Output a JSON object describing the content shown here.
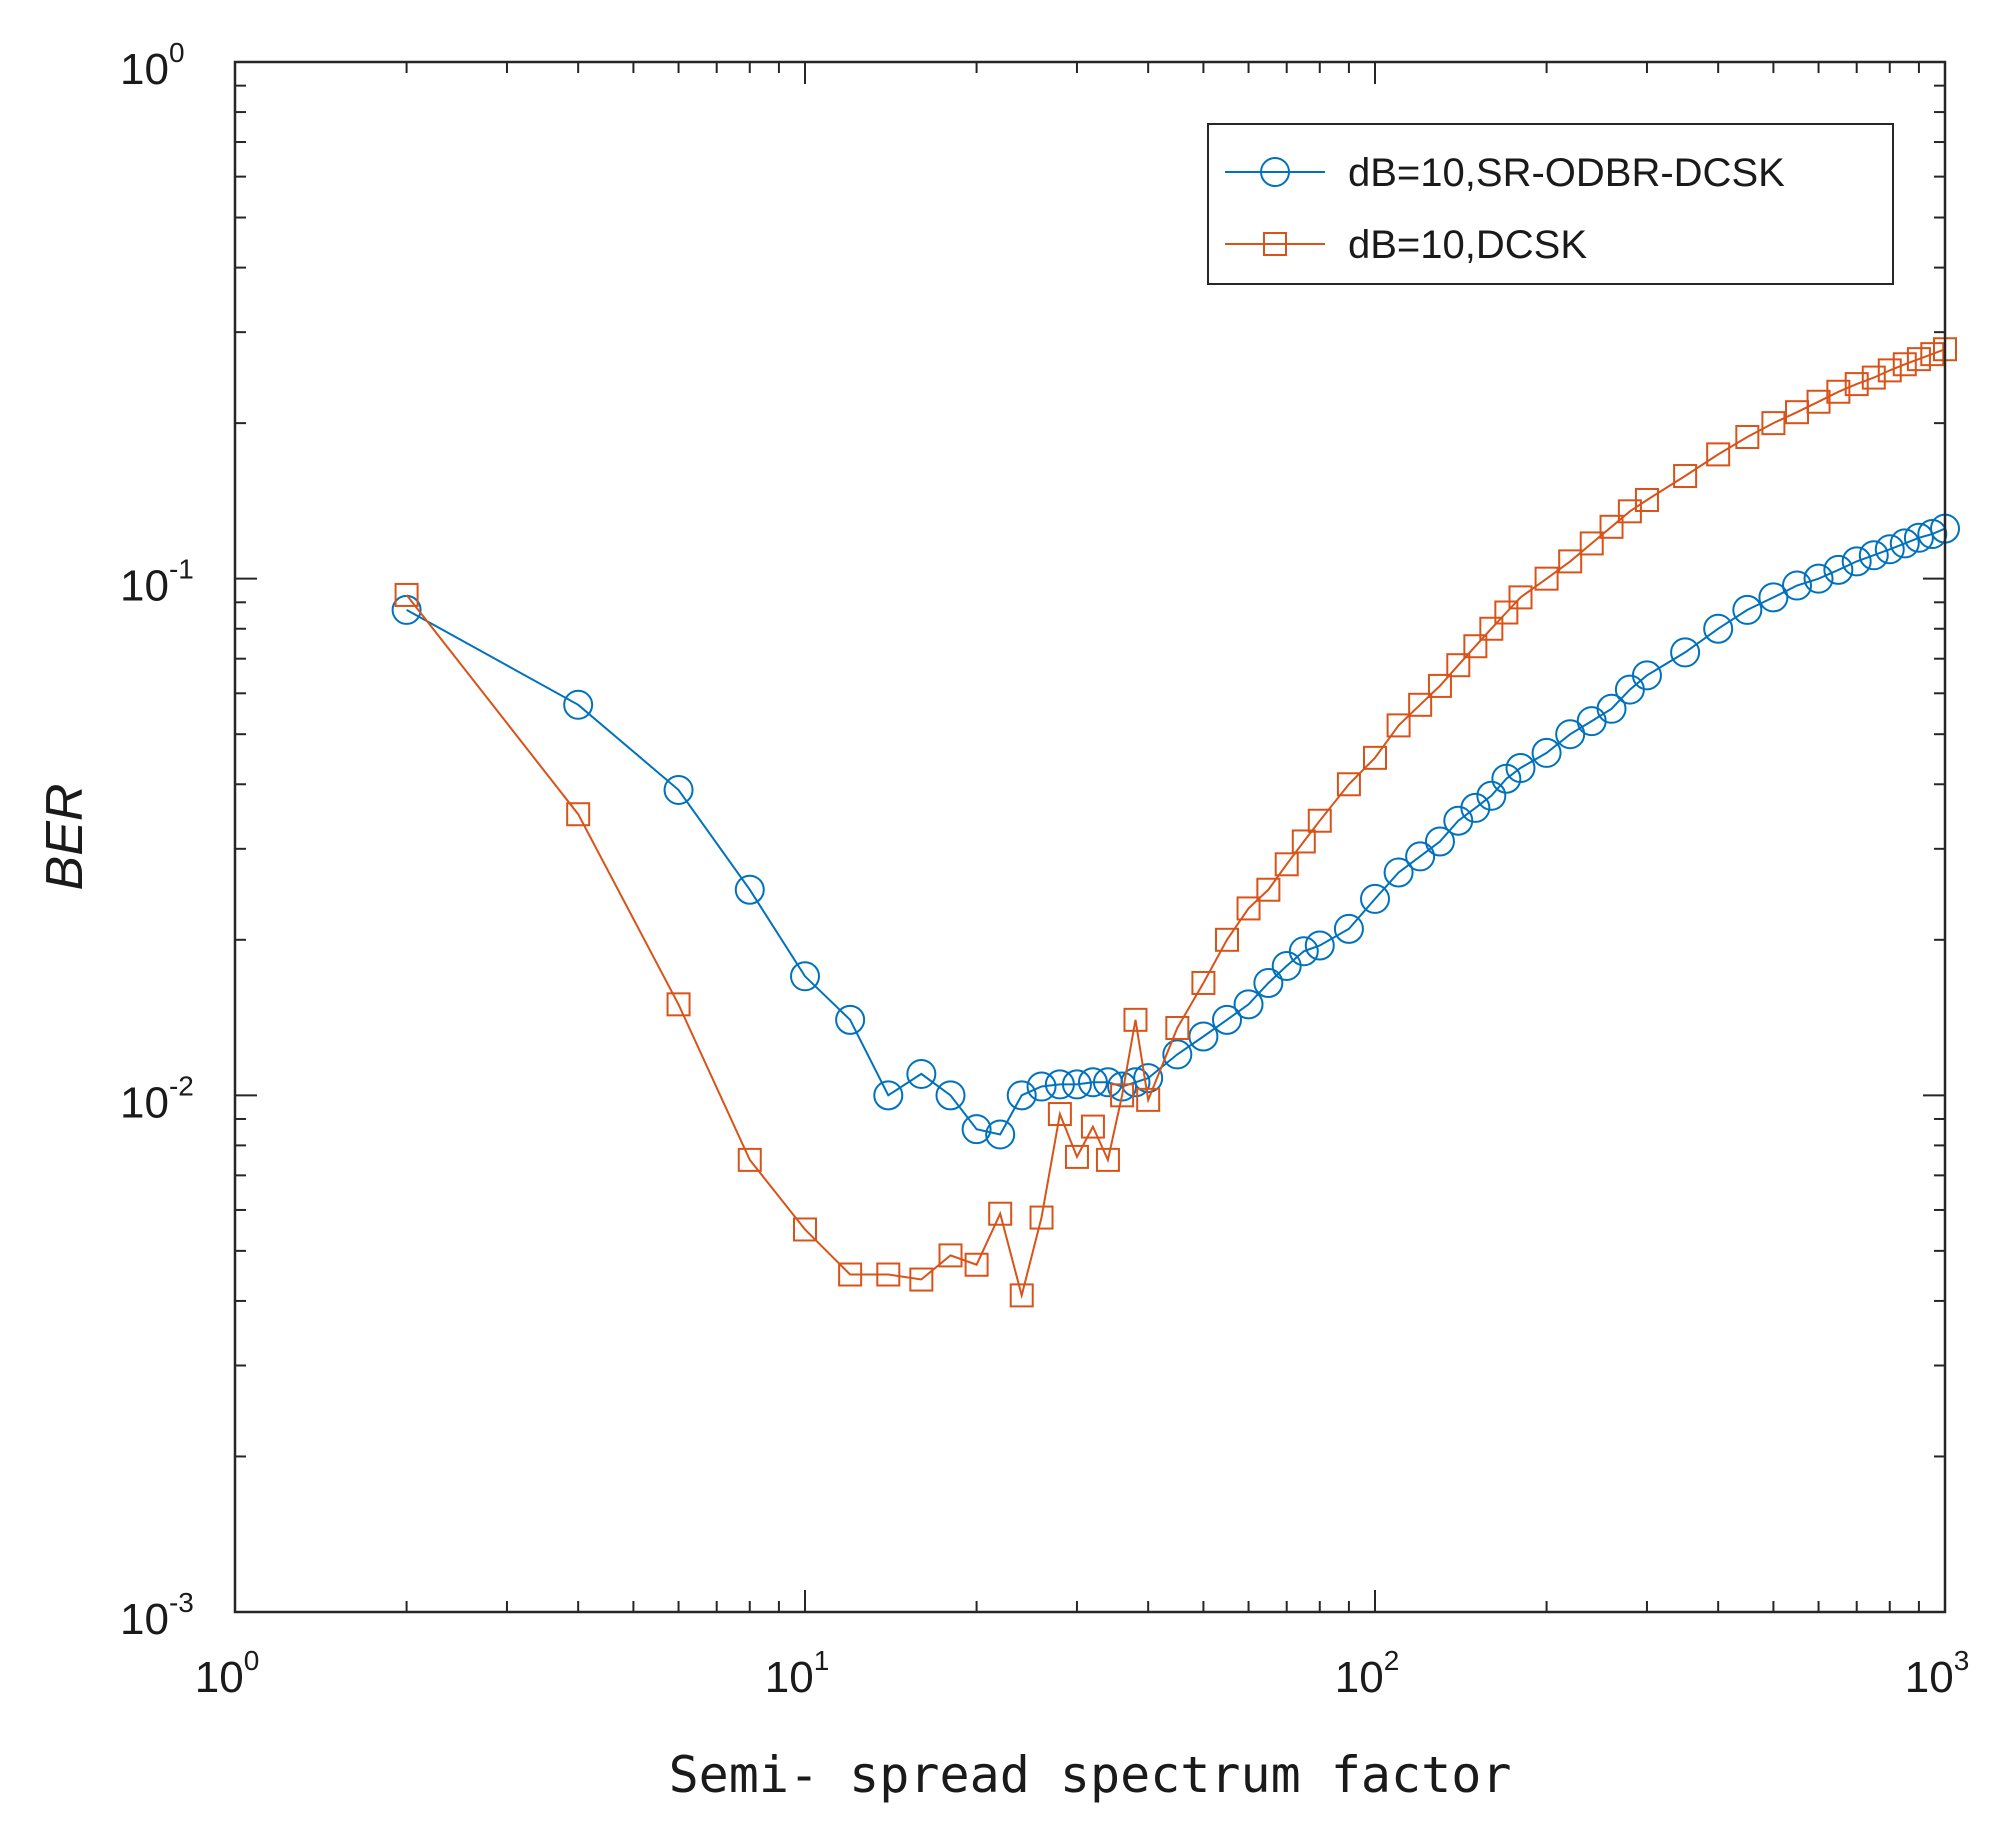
{
  "chart_data": {
    "type": "line",
    "title": "",
    "xlabel": "Semi- spread spectrum factor",
    "ylabel": "BER",
    "xscale": "log",
    "yscale": "log",
    "xlim": [
      1,
      1000
    ],
    "ylim": [
      0.001,
      1
    ],
    "x_ticks": [
      {
        "base": "10",
        "exp": "0"
      },
      {
        "base": "10",
        "exp": "1"
      },
      {
        "base": "10",
        "exp": "2"
      },
      {
        "base": "10",
        "exp": "3"
      }
    ],
    "y_ticks": [
      {
        "base": "10",
        "exp": "-3"
      },
      {
        "base": "10",
        "exp": "-2"
      },
      {
        "base": "10",
        "exp": "-1"
      },
      {
        "base": "10",
        "exp": "0"
      }
    ],
    "legend_position": "top-right",
    "series": [
      {
        "name": "dB=10,SR-ODBR-DCSK",
        "color": "#0072bd",
        "marker": "circle",
        "x": [
          2,
          4,
          6,
          8,
          10,
          12,
          14,
          16,
          18,
          20,
          22,
          24,
          26,
          28,
          30,
          32,
          34,
          36,
          38,
          40,
          45,
          50,
          55,
          60,
          65,
          70,
          75,
          80,
          90,
          100,
          110,
          120,
          130,
          140,
          150,
          160,
          170,
          180,
          200,
          220,
          240,
          260,
          280,
          300,
          350,
          400,
          450,
          500,
          550,
          600,
          650,
          700,
          750,
          800,
          850,
          900,
          950,
          1000
        ],
        "y": [
          0.087,
          0.057,
          0.039,
          0.025,
          0.017,
          0.014,
          0.01,
          0.011,
          0.01,
          0.0086,
          0.0084,
          0.01,
          0.0104,
          0.0105,
          0.0105,
          0.0106,
          0.0106,
          0.0104,
          0.0106,
          0.0108,
          0.012,
          0.013,
          0.014,
          0.015,
          0.0165,
          0.0178,
          0.019,
          0.0195,
          0.021,
          0.024,
          0.027,
          0.029,
          0.031,
          0.034,
          0.036,
          0.038,
          0.041,
          0.043,
          0.046,
          0.05,
          0.053,
          0.056,
          0.061,
          0.065,
          0.072,
          0.08,
          0.087,
          0.092,
          0.097,
          0.1,
          0.104,
          0.108,
          0.111,
          0.114,
          0.117,
          0.12,
          0.122,
          0.125
        ]
      },
      {
        "name": "dB=10,DCSK",
        "color": "#d95319",
        "marker": "square",
        "x": [
          2,
          4,
          6,
          8,
          10,
          12,
          14,
          16,
          18,
          20,
          22,
          24,
          26,
          28,
          30,
          32,
          34,
          36,
          38,
          40,
          45,
          50,
          55,
          60,
          65,
          70,
          75,
          80,
          90,
          100,
          110,
          120,
          130,
          140,
          150,
          160,
          170,
          180,
          200,
          220,
          240,
          260,
          280,
          300,
          350,
          400,
          450,
          500,
          550,
          600,
          650,
          700,
          750,
          800,
          850,
          900,
          950,
          1000
        ],
        "y": [
          0.093,
          0.035,
          0.015,
          0.0075,
          0.0055,
          0.0045,
          0.0045,
          0.0044,
          0.0049,
          0.0047,
          0.0059,
          0.0041,
          0.0058,
          0.0092,
          0.0076,
          0.0087,
          0.0075,
          0.01,
          0.014,
          0.0098,
          0.0135,
          0.0165,
          0.02,
          0.023,
          0.025,
          0.028,
          0.031,
          0.034,
          0.04,
          0.045,
          0.052,
          0.057,
          0.062,
          0.068,
          0.074,
          0.08,
          0.086,
          0.092,
          0.1,
          0.108,
          0.117,
          0.126,
          0.135,
          0.142,
          0.158,
          0.174,
          0.188,
          0.2,
          0.21,
          0.22,
          0.23,
          0.238,
          0.245,
          0.253,
          0.26,
          0.266,
          0.272,
          0.278
        ]
      }
    ]
  }
}
